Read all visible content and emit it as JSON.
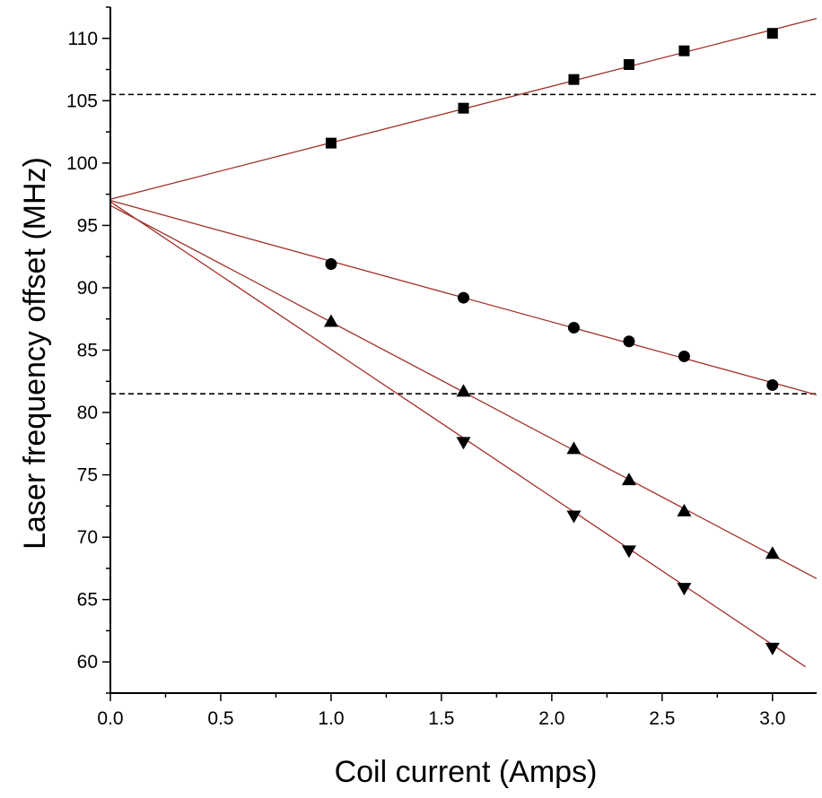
{
  "chart_data": {
    "type": "scatter",
    "title": "",
    "xlabel": "Coil current (Amps)",
    "ylabel": "Laser frequency offset (MHz)",
    "xlim": [
      0.0,
      3.2
    ],
    "ylim": [
      57.5,
      112.5
    ],
    "x_ticks": [
      "0.0",
      "0.5",
      "1.0",
      "1.5",
      "2.0",
      "2.5",
      "3.0"
    ],
    "x_tick_values": [
      0.0,
      0.5,
      1.0,
      1.5,
      2.0,
      2.5,
      3.0
    ],
    "y_ticks": [
      "60",
      "65",
      "70",
      "75",
      "80",
      "85",
      "90",
      "95",
      "100",
      "105",
      "110"
    ],
    "y_tick_values": [
      60,
      65,
      70,
      75,
      80,
      85,
      90,
      95,
      100,
      105,
      110
    ],
    "grid": false,
    "legend": "none",
    "series": [
      {
        "marker": "square",
        "x": [
          1.0,
          1.6,
          2.1,
          2.35,
          2.6,
          3.0
        ],
        "y": [
          101.6,
          104.4,
          106.7,
          107.9,
          109.0,
          110.4
        ],
        "fit": {
          "slope": 4.53,
          "intercept": 97.1,
          "x_end": 3.2
        }
      },
      {
        "marker": "circle",
        "x": [
          1.0,
          1.6,
          2.1,
          2.35,
          2.6,
          3.0
        ],
        "y": [
          91.9,
          89.2,
          86.8,
          85.7,
          84.5,
          82.2
        ],
        "fit": {
          "slope": -4.87,
          "intercept": 97.0,
          "x_end": 3.2
        }
      },
      {
        "marker": "triangle-up",
        "x": [
          1.0,
          1.6,
          2.1,
          2.35,
          2.6,
          3.0
        ],
        "y": [
          87.3,
          81.7,
          77.1,
          74.6,
          72.1,
          68.7
        ],
        "fit": {
          "slope": -9.35,
          "intercept": 96.6,
          "x_end": 3.2
        }
      },
      {
        "marker": "triangle-down",
        "x": [
          1.6,
          2.1,
          2.35,
          2.6,
          3.0
        ],
        "y": [
          77.6,
          71.7,
          68.9,
          65.9,
          61.1
        ],
        "fit": {
          "slope": -11.84,
          "intercept": 96.9,
          "x_end": 3.15
        }
      }
    ],
    "reference_lines": [
      105.5,
      81.5
    ],
    "colors": {
      "fit_line": "#a0302a",
      "marker": "#000000",
      "reference_line": "#000000"
    }
  }
}
